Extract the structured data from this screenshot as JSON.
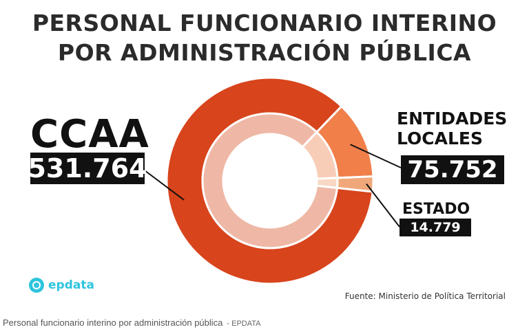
{
  "title_line1": "PERSONAL FUNCIONARIO INTERINO",
  "title_line2": "POR ADMINISTRACIÓN PÚBLICA",
  "labels": {
    "ccaa_name": "CCAA",
    "ccaa_value": "531.764",
    "el_line1": "ENTIDADES",
    "el_line2": "LOCALES",
    "el_value": "75.752",
    "es_name": "ESTADO",
    "es_value": "14.779"
  },
  "logo": {
    "icon": "epdata-logo-icon",
    "text": "epdata"
  },
  "source": "Fuente: Ministerio de Política Territorial",
  "caption": "Personal funcionario interino por administración pública",
  "caption_source": "- EPDATA",
  "chart_data": {
    "type": "pie",
    "title": "PERSONAL FUNCIONARIO INTERINO POR ADMINISTRACIÓN PÚBLICA",
    "categories": [
      "CCAA",
      "ENTIDADES LOCALES",
      "ESTADO"
    ],
    "values": [
      531764,
      75752,
      14779
    ],
    "value_labels": [
      "531.764",
      "75.752",
      "14.779"
    ],
    "colors": [
      "#d8441c",
      "#f07f4a",
      "#f0a87a"
    ],
    "inner_colors": [
      "#efb8a6",
      "#f8cdb8",
      "#f8d8c4"
    ],
    "style": "donut"
  }
}
